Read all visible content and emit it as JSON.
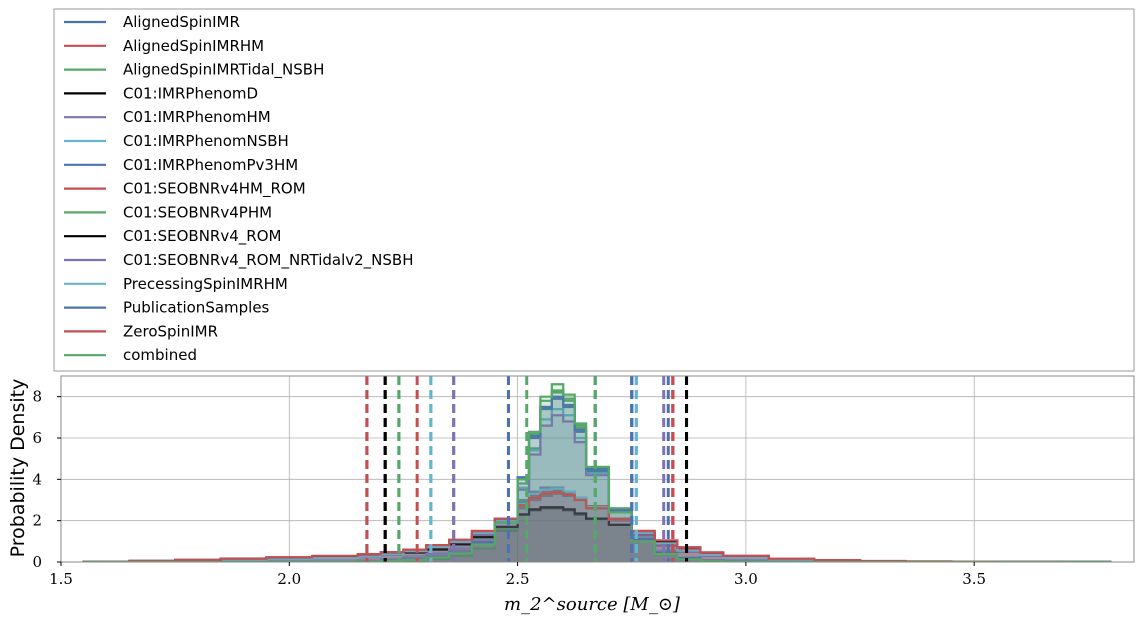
{
  "chart_data": {
    "type": "area",
    "title": "",
    "xlabel": "m_2^source [M_⊙]",
    "ylabel": "Probability Density",
    "xlim": [
      1.5,
      3.85
    ],
    "ylim": [
      0,
      9
    ],
    "xticks": [
      1.5,
      2.0,
      2.5,
      3.0,
      3.5
    ],
    "xtick_labels": [
      "1.5",
      "2.0",
      "2.5",
      "3.0",
      "3.5"
    ],
    "yticks": [
      0,
      2,
      4,
      6,
      8
    ],
    "ytick_labels": [
      "0",
      "2",
      "4",
      "6",
      "8"
    ],
    "grid": true,
    "legend_position": "top (above plot)",
    "histogram_style": "step histogram with translucent fill",
    "bin_edges": [
      1.55,
      1.65,
      1.75,
      1.85,
      1.95,
      2.05,
      2.15,
      2.2,
      2.25,
      2.3,
      2.35,
      2.4,
      2.45,
      2.5,
      2.525,
      2.55,
      2.575,
      2.6,
      2.625,
      2.65,
      2.7,
      2.75,
      2.8,
      2.85,
      2.9,
      2.95,
      3.05,
      3.15,
      3.25,
      3.35,
      3.45,
      3.55,
      3.7,
      3.8
    ],
    "series": [
      {
        "name": "AlignedSpinIMR",
        "color": "#4c72b0",
        "ci": [
          2.17,
          2.83
        ],
        "values": [
          0,
          0.02,
          0.05,
          0.1,
          0.15,
          0.2,
          0.3,
          0.4,
          0.5,
          0.7,
          0.9,
          1.3,
          1.9,
          2.6,
          3.0,
          3.2,
          3.3,
          3.2,
          3.0,
          2.6,
          2.0,
          1.4,
          0.9,
          0.6,
          0.4,
          0.25,
          0.12,
          0.06,
          0.03,
          0.02,
          0.01,
          0.005,
          0
        ]
      },
      {
        "name": "AlignedSpinIMRHM",
        "color": "#c44e52",
        "ci": [
          2.17,
          2.84
        ],
        "values": [
          0,
          0.03,
          0.06,
          0.12,
          0.18,
          0.25,
          0.35,
          0.45,
          0.55,
          0.75,
          1.0,
          1.4,
          2.0,
          2.7,
          3.1,
          3.3,
          3.4,
          3.3,
          3.1,
          2.7,
          2.1,
          1.5,
          1.0,
          0.65,
          0.45,
          0.3,
          0.15,
          0.08,
          0.04,
          0.02,
          0.01,
          0.005,
          0
        ]
      },
      {
        "name": "AlignedSpinIMRTidal_NSBH",
        "color": "#55a868",
        "ci": [
          2.24,
          2.67
        ],
        "values": [
          0,
          0,
          0,
          0,
          0,
          0.02,
          0.05,
          0.1,
          0.2,
          0.4,
          0.6,
          0.9,
          1.5,
          3.0,
          5.5,
          7.5,
          8.2,
          7.8,
          6.5,
          4.5,
          2.6,
          1.2,
          0.5,
          0.2,
          0.08,
          0.03,
          0.01,
          0,
          0,
          0,
          0,
          0,
          0
        ]
      },
      {
        "name": "C01:IMRPhenomD",
        "color": "#000000",
        "ci": [
          2.21,
          2.87
        ],
        "values": [
          0.01,
          0.05,
          0.1,
          0.15,
          0.2,
          0.25,
          0.3,
          0.35,
          0.45,
          0.6,
          0.85,
          1.2,
          1.7,
          2.3,
          2.5,
          2.6,
          2.6,
          2.5,
          2.3,
          2.1,
          1.8,
          1.4,
          1.0,
          0.7,
          0.45,
          0.25,
          0.12,
          0.06,
          0.03,
          0.02,
          0.01,
          0.005,
          0
        ]
      },
      {
        "name": "C01:IMRPhenomHM",
        "color": "#8172b2",
        "ci": [
          2.36,
          2.82
        ],
        "values": [
          0,
          0.02,
          0.04,
          0.08,
          0.12,
          0.18,
          0.25,
          0.35,
          0.5,
          0.7,
          0.95,
          1.4,
          2.0,
          2.9,
          3.4,
          3.6,
          3.6,
          3.4,
          3.1,
          2.6,
          2.0,
          1.3,
          0.8,
          0.5,
          0.3,
          0.18,
          0.08,
          0.04,
          0.02,
          0.01,
          0,
          0,
          0
        ]
      },
      {
        "name": "C01:IMRPhenomNSBH",
        "color": "#64b5cd",
        "ci": [
          2.31,
          2.76
        ],
        "values": [
          0,
          0,
          0,
          0,
          0.01,
          0.03,
          0.08,
          0.15,
          0.28,
          0.45,
          0.7,
          1.1,
          2.0,
          3.6,
          5.4,
          6.9,
          7.4,
          7.1,
          6.0,
          4.3,
          2.5,
          1.2,
          0.55,
          0.22,
          0.08,
          0.03,
          0.01,
          0,
          0,
          0,
          0,
          0,
          0
        ]
      },
      {
        "name": "C01:IMRPhenomPv3HM",
        "color": "#4c72b0",
        "ci": [
          2.48,
          2.75
        ],
        "values": [
          0,
          0,
          0,
          0,
          0,
          0.01,
          0.03,
          0.06,
          0.12,
          0.25,
          0.45,
          0.9,
          2.0,
          4.0,
          6.0,
          7.4,
          7.9,
          7.5,
          6.3,
          4.4,
          2.5,
          1.1,
          0.45,
          0.18,
          0.06,
          0.02,
          0.01,
          0,
          0,
          0,
          0,
          0,
          0
        ]
      },
      {
        "name": "C01:SEOBNRv4HM_ROM",
        "color": "#c44e52",
        "ci": [
          2.28,
          2.84
        ],
        "values": [
          0.01,
          0.04,
          0.08,
          0.13,
          0.2,
          0.27,
          0.35,
          0.45,
          0.58,
          0.8,
          1.05,
          1.5,
          2.1,
          2.8,
          3.2,
          3.4,
          3.45,
          3.35,
          3.1,
          2.7,
          2.1,
          1.5,
          1.0,
          0.65,
          0.42,
          0.27,
          0.14,
          0.08,
          0.04,
          0.02,
          0.01,
          0.005,
          0
        ]
      },
      {
        "name": "C01:SEOBNRv4PHM",
        "color": "#55a868",
        "ci": [
          2.52,
          2.67
        ],
        "values": [
          0,
          0,
          0,
          0,
          0,
          0,
          0.01,
          0.03,
          0.07,
          0.15,
          0.3,
          0.65,
          1.6,
          3.8,
          6.2,
          7.8,
          8.3,
          7.9,
          6.6,
          4.6,
          2.4,
          1.0,
          0.35,
          0.12,
          0.04,
          0.01,
          0,
          0,
          0,
          0,
          0,
          0,
          0
        ]
      },
      {
        "name": "C01:SEOBNRv4_ROM",
        "color": "#000000",
        "ci": [
          2.21,
          2.87
        ],
        "values": [
          0.01,
          0.05,
          0.1,
          0.16,
          0.22,
          0.28,
          0.33,
          0.38,
          0.48,
          0.62,
          0.85,
          1.2,
          1.7,
          2.3,
          2.55,
          2.65,
          2.65,
          2.55,
          2.35,
          2.1,
          1.8,
          1.4,
          1.0,
          0.7,
          0.46,
          0.26,
          0.12,
          0.06,
          0.03,
          0.02,
          0.01,
          0.005,
          0
        ]
      },
      {
        "name": "C01:SEOBNRv4_ROM_NRTidalv2_NSBH",
        "color": "#8172b2",
        "ci": [
          2.36,
          2.75
        ],
        "values": [
          0,
          0,
          0,
          0,
          0.01,
          0.02,
          0.05,
          0.1,
          0.2,
          0.38,
          0.62,
          1.0,
          1.9,
          3.5,
          5.2,
          6.6,
          7.1,
          6.8,
          5.8,
          4.2,
          2.4,
          1.1,
          0.5,
          0.2,
          0.07,
          0.02,
          0.01,
          0,
          0,
          0,
          0,
          0,
          0
        ]
      },
      {
        "name": "PrecessingSpinIMRHM",
        "color": "#64b5cd",
        "ci": [
          2.31,
          2.76
        ],
        "values": [
          0,
          0.02,
          0.04,
          0.08,
          0.13,
          0.19,
          0.27,
          0.37,
          0.52,
          0.72,
          0.98,
          1.4,
          2.0,
          2.8,
          3.3,
          3.5,
          3.55,
          3.4,
          3.1,
          2.65,
          2.05,
          1.4,
          0.9,
          0.55,
          0.34,
          0.2,
          0.1,
          0.05,
          0.02,
          0.01,
          0,
          0,
          0
        ]
      },
      {
        "name": "PublicationSamples",
        "color": "#4c72b0",
        "ci": [
          2.48,
          2.75
        ],
        "values": [
          0,
          0,
          0,
          0,
          0,
          0.01,
          0.03,
          0.06,
          0.12,
          0.25,
          0.46,
          0.95,
          2.1,
          4.1,
          6.1,
          7.5,
          8.0,
          7.6,
          6.4,
          4.5,
          2.5,
          1.1,
          0.45,
          0.18,
          0.06,
          0.02,
          0.01,
          0,
          0,
          0,
          0,
          0,
          0
        ]
      },
      {
        "name": "ZeroSpinIMR",
        "color": "#c44e52",
        "ci": [
          2.17,
          2.84
        ],
        "values": [
          0.01,
          0.05,
          0.1,
          0.16,
          0.23,
          0.3,
          0.38,
          0.48,
          0.6,
          0.82,
          1.08,
          1.5,
          2.1,
          2.75,
          3.1,
          3.3,
          3.35,
          3.25,
          3.0,
          2.6,
          2.05,
          1.5,
          1.05,
          0.7,
          0.46,
          0.3,
          0.16,
          0.09,
          0.05,
          0.03,
          0.02,
          0.01,
          0
        ]
      },
      {
        "name": "combined",
        "color": "#55a868",
        "ci": [
          2.24,
          2.67
        ],
        "values": [
          0,
          0,
          0,
          0,
          0,
          0.01,
          0.02,
          0.05,
          0.1,
          0.22,
          0.42,
          0.85,
          1.9,
          4.0,
          6.3,
          8.0,
          8.6,
          8.1,
          6.7,
          4.6,
          2.4,
          1.0,
          0.38,
          0.13,
          0.04,
          0.01,
          0,
          0,
          0,
          0,
          0,
          0,
          0
        ]
      }
    ]
  }
}
